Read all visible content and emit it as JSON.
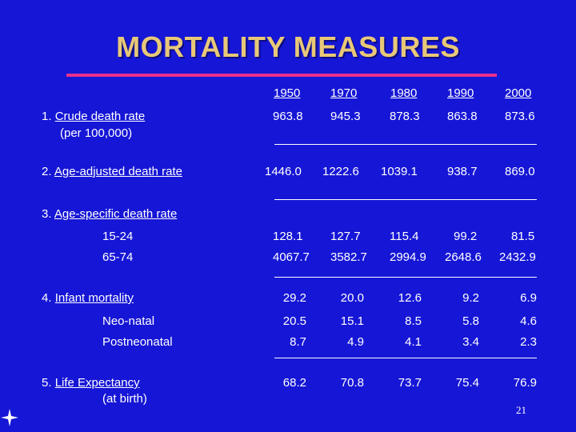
{
  "title": "MORTALITY MEASURES",
  "years": [
    "1950",
    "1970",
    "1980",
    "1990",
    "2000"
  ],
  "rows": {
    "crude": {
      "label": "1. Crude death rate",
      "label_underlined": "Crude death rate",
      "prefix": "1. ",
      "sublabel": "(per 100,000)",
      "values": [
        "963.8",
        "945.3",
        "878.3",
        "863.8",
        "873.6"
      ]
    },
    "age_adjusted": {
      "prefix": "2. ",
      "label_underlined": "Age-adjusted death rate",
      "values": [
        "1446.0",
        "1222.6",
        "1039.1",
        "938.7",
        "869.0"
      ]
    },
    "age_specific": {
      "prefix": "3. ",
      "label_underlined": "Age-specific death rate",
      "groups": [
        {
          "label": "15-24",
          "values": [
            "128.1",
            "127.7",
            "115.4",
            "99.2",
            "81.5"
          ]
        },
        {
          "label": "65-74",
          "values": [
            "4067.7",
            "3582.7",
            "2994.9",
            "2648.6",
            "2432.9"
          ]
        }
      ]
    },
    "infant": {
      "prefix": "4. ",
      "label_underlined": "Infant mortality",
      "values": [
        "29.2",
        "20.0",
        "12.6",
        "9.2",
        "6.9"
      ],
      "subs": [
        {
          "label": "Neo-natal",
          "values": [
            "20.5",
            "15.1",
            "8.5",
            "5.8",
            "4.6"
          ]
        },
        {
          "label": "Postneonatal",
          "values": [
            "8.7",
            "4.9",
            "4.1",
            "3.4",
            "2.3"
          ]
        }
      ]
    },
    "life": {
      "prefix": "5. ",
      "label_underlined": "Life Expectancy",
      "sublabel": "(at birth)",
      "values": [
        "68.2",
        "70.8",
        "73.7",
        "75.4",
        "76.9"
      ]
    }
  },
  "page_number": "21",
  "colors": {
    "background": "#1616d6",
    "title": "#e8c878",
    "title_bar": "#e8308c",
    "text": "#ffffff"
  },
  "icons": {
    "corner": "four-point-star-icon"
  }
}
